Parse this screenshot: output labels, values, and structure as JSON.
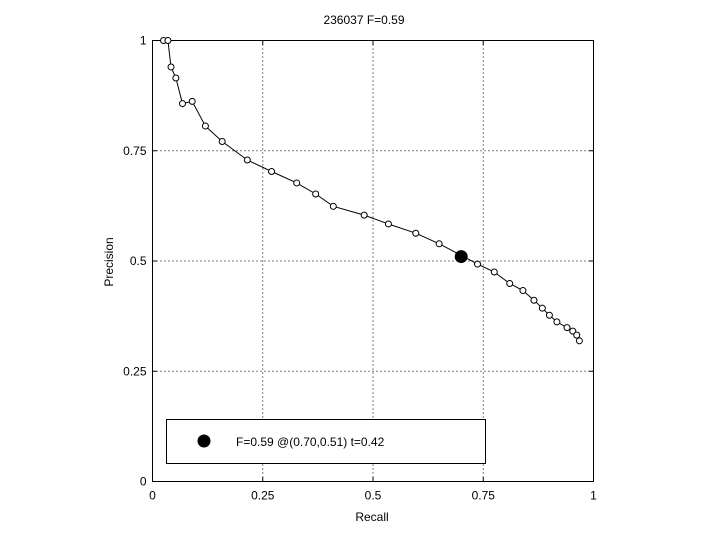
{
  "chart_data": {
    "type": "line",
    "title": "236037 F=0.59",
    "xlabel": "Recall",
    "ylabel": "Precision",
    "xlim": [
      0,
      1
    ],
    "ylim": [
      0,
      1
    ],
    "xticks": [
      0,
      0.25,
      0.5,
      0.75,
      1
    ],
    "yticks": [
      0,
      0.25,
      0.5,
      0.75,
      1
    ],
    "xtick_labels": [
      "0",
      "0.25",
      "0.5",
      "0.75",
      "1"
    ],
    "ytick_labels": [
      "0",
      "0.25",
      "0.5",
      "0.75",
      "1"
    ],
    "grid": true,
    "series": [
      {
        "points": [
          [
            0.025,
            1.0
          ],
          [
            0.035,
            1.0
          ],
          [
            0.042,
            0.94
          ],
          [
            0.053,
            0.915
          ],
          [
            0.068,
            0.857
          ],
          [
            0.09,
            0.862
          ],
          [
            0.12,
            0.806
          ],
          [
            0.158,
            0.771
          ],
          [
            0.215,
            0.729
          ],
          [
            0.27,
            0.703
          ],
          [
            0.327,
            0.677
          ],
          [
            0.37,
            0.652
          ],
          [
            0.41,
            0.624
          ],
          [
            0.48,
            0.604
          ],
          [
            0.535,
            0.584
          ],
          [
            0.597,
            0.563
          ],
          [
            0.65,
            0.539
          ],
          [
            0.7,
            0.513
          ],
          [
            0.737,
            0.493
          ],
          [
            0.775,
            0.475
          ],
          [
            0.81,
            0.449
          ],
          [
            0.84,
            0.433
          ],
          [
            0.865,
            0.411
          ],
          [
            0.884,
            0.393
          ],
          [
            0.9,
            0.377
          ],
          [
            0.917,
            0.362
          ],
          [
            0.94,
            0.349
          ],
          [
            0.953,
            0.341
          ],
          [
            0.962,
            0.332
          ],
          [
            0.968,
            0.319
          ]
        ]
      }
    ],
    "best_point": {
      "recall": 0.7,
      "precision": 0.51
    },
    "legend": {
      "text": "F=0.59 @(0.70,0.51) t=0.42",
      "placement": "bottom-left"
    }
  }
}
